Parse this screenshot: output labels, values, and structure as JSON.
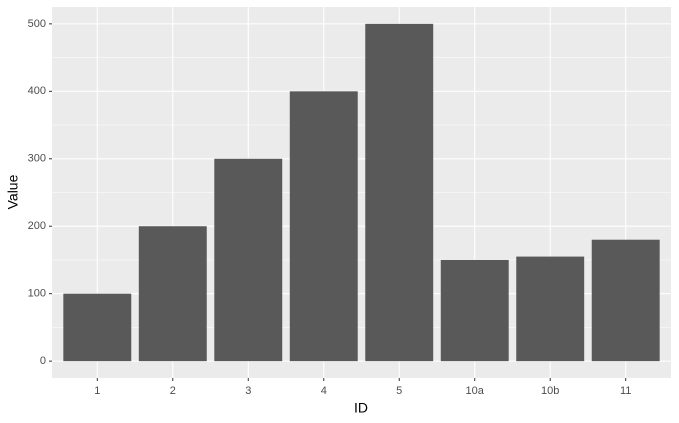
{
  "chart_data": {
    "type": "bar",
    "x_label": "ID",
    "y_label": "Value",
    "categories": [
      "1",
      "2",
      "3",
      "4",
      "5",
      "10a",
      "10b",
      "11"
    ],
    "values": [
      100,
      200,
      300,
      400,
      500,
      150,
      155,
      180
    ],
    "color": "#595959",
    "ylim": [
      -25,
      525
    ],
    "yticks": [
      0,
      100,
      200,
      300,
      400,
      500
    ],
    "grid": true
  }
}
